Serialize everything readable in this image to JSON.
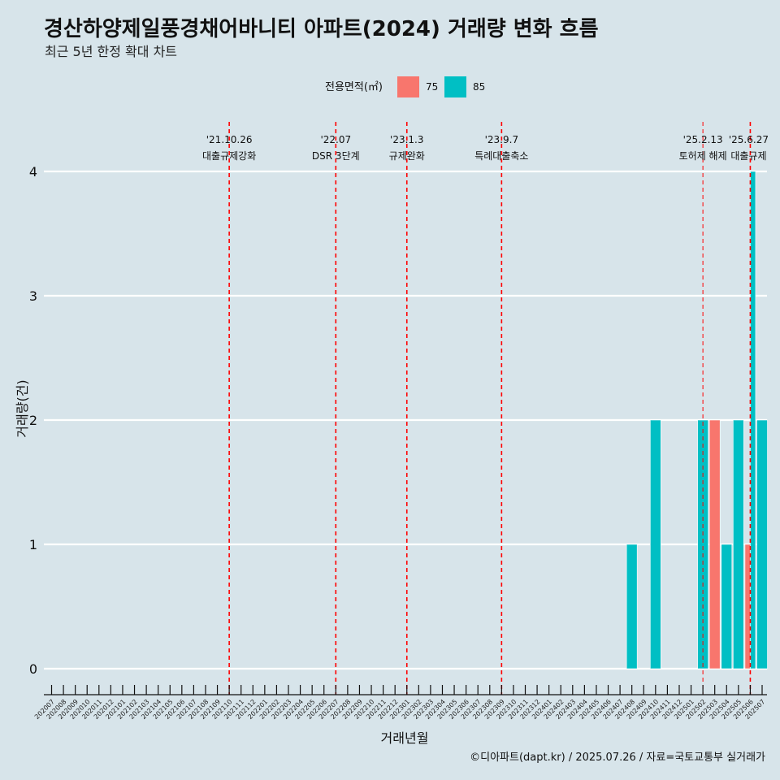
{
  "title": "경산하양제일풍경채어바니티 아파트(2024) 거래량 변화 흐름",
  "subtitle": "최근 5년 한정 확대 차트",
  "caption": "©디아파트(dapt.kr) / 2025.07.26 / 자료=국토교통부 실거래가",
  "legend": {
    "title": "전용면적(㎡)",
    "items": [
      {
        "label": "75",
        "color": "#f8766d"
      },
      {
        "label": "85",
        "color": "#00bfc4"
      }
    ]
  },
  "chart_data": {
    "type": "bar",
    "xlabel": "거래년월",
    "ylabel": "거래량(건)",
    "ylim": [
      0,
      4
    ],
    "yticks": [
      "0",
      "1",
      "2",
      "3",
      "4"
    ],
    "categories": [
      "202007",
      "202008",
      "202009",
      "202010",
      "202011",
      "202012",
      "202101",
      "202102",
      "202103",
      "202104",
      "202105",
      "202106",
      "202107",
      "202108",
      "202109",
      "202110",
      "202111",
      "202112",
      "202201",
      "202202",
      "202203",
      "202204",
      "202205",
      "202206",
      "202207",
      "202208",
      "202209",
      "202210",
      "202211",
      "202212",
      "202301",
      "202302",
      "202303",
      "202304",
      "202305",
      "202306",
      "202307",
      "202308",
      "202309",
      "202310",
      "202311",
      "202312",
      "202401",
      "202402",
      "202403",
      "202404",
      "202405",
      "202406",
      "202407",
      "202408",
      "202409",
      "202410",
      "202411",
      "202412",
      "202501",
      "202502",
      "202503",
      "202504",
      "202505",
      "202506",
      "202507"
    ],
    "bars": [
      {
        "month": "202408",
        "size": "85",
        "value": 1
      },
      {
        "month": "202410",
        "size": "85",
        "value": 2
      },
      {
        "month": "202502",
        "size": "85",
        "value": 2
      },
      {
        "month": "202503",
        "size": "75",
        "value": 2
      },
      {
        "month": "202504",
        "size": "85",
        "value": 1
      },
      {
        "month": "202505",
        "size": "85",
        "value": 2
      },
      {
        "month": "202506",
        "size": "75",
        "value": 1
      },
      {
        "month": "202506",
        "size": "85",
        "value": 4
      },
      {
        "month": "202507",
        "size": "85",
        "value": 2
      }
    ],
    "annotations": [
      {
        "month": "202110",
        "date": "'21.10.26",
        "label": "대출규제강화"
      },
      {
        "month": "202207",
        "date": "'22.07",
        "label": "DSR 3단계"
      },
      {
        "month": "202301",
        "date": "'23.1.3",
        "label": "규제완화"
      },
      {
        "month": "202309",
        "date": "'23.9.7",
        "label": "특례대출축소"
      },
      {
        "month": "202502",
        "date": "'25.2.13",
        "label": "토허제 해제"
      },
      {
        "month": "202506",
        "date": "'25.6.27",
        "label": "대출규제"
      }
    ],
    "grid": "horizontal",
    "legend_position": "top",
    "colors": {
      "vline": "#ff0000",
      "grid": "#ffffff",
      "background": "#d7e4ea"
    }
  }
}
